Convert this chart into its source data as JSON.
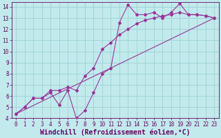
{
  "xlabel": "Windchill (Refroidissement éolien,°C)",
  "xlim": [
    -0.5,
    23.5
  ],
  "ylim": [
    4,
    14.4
  ],
  "xticks": [
    0,
    1,
    2,
    3,
    4,
    5,
    6,
    7,
    8,
    9,
    10,
    11,
    12,
    13,
    14,
    15,
    16,
    17,
    18,
    19,
    20,
    21,
    22,
    23
  ],
  "yticks": [
    4,
    5,
    6,
    7,
    8,
    9,
    10,
    11,
    12,
    13,
    14
  ],
  "bg_color": "#c2eaec",
  "grid_color": "#9fd4d8",
  "line_color": "#993399",
  "line1_x": [
    0,
    1,
    2,
    3,
    4,
    5,
    6,
    7,
    8,
    9,
    10,
    11,
    12,
    13,
    14,
    15,
    16,
    17,
    18,
    19,
    20,
    21,
    22,
    23
  ],
  "line1_y": [
    4.4,
    5.0,
    5.8,
    5.8,
    6.3,
    5.2,
    6.5,
    4.0,
    4.7,
    6.3,
    8.0,
    8.5,
    12.6,
    14.2,
    13.3,
    13.3,
    13.5,
    13.0,
    13.5,
    14.3,
    13.3,
    13.3,
    13.2,
    13.0
  ],
  "line2_x": [
    0,
    1,
    2,
    3,
    4,
    5,
    6,
    7,
    8,
    9,
    10,
    11,
    12,
    13,
    14,
    15,
    16,
    17,
    18,
    19,
    20,
    21,
    22,
    23
  ],
  "line2_y": [
    4.4,
    5.0,
    5.8,
    5.8,
    6.5,
    6.5,
    6.8,
    6.5,
    7.8,
    8.5,
    10.2,
    10.8,
    11.5,
    12.0,
    12.5,
    12.8,
    13.0,
    13.2,
    13.3,
    13.5,
    13.3,
    13.3,
    13.2,
    13.0
  ],
  "line3_x": [
    0,
    23
  ],
  "line3_y": [
    4.4,
    13.0
  ],
  "font_color": "#660066",
  "tick_fontsize": 5.5,
  "label_fontsize": 7
}
